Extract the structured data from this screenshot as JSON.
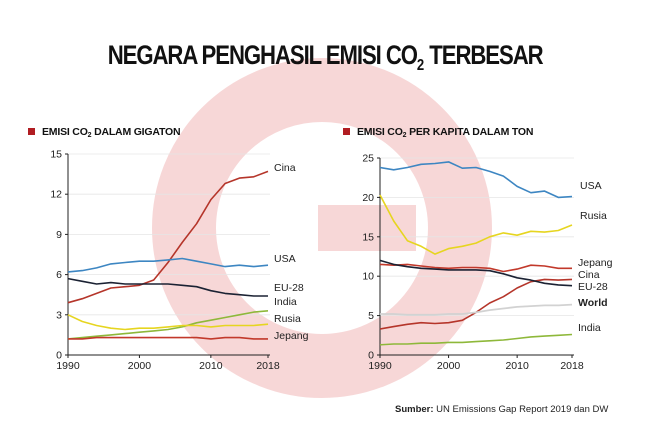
{
  "page": {
    "title_main": "NEGARA PENGHASIL EMISI CO",
    "title_sub": "2",
    "title_end": " TERBESAR",
    "source_label": "Sumber:",
    "source_text": " UN Emissions Gap Report 2019 dan DW"
  },
  "colors": {
    "accent": "#b11d22",
    "watermark": "#f4c9c9",
    "Cina": "#b5352a",
    "USA": "#3d86c2",
    "EU-28": "#1b2233",
    "India": "#8eb83a",
    "Rusia": "#e6d520",
    "Jepang": "#c2392b",
    "World": "#d2d2d2"
  },
  "chart_data": [
    {
      "type": "line",
      "title_main": "EMISI CO",
      "title_sub": "2",
      "title_end": " DALAM GIGATON",
      "xlim": [
        1990,
        2018
      ],
      "ylim": [
        0,
        15
      ],
      "x_ticks": [
        "1990",
        "2000",
        "2010",
        "2018"
      ],
      "x_tick_values": [
        1990,
        2000,
        2010,
        2018
      ],
      "y_ticks": [
        "0",
        "3",
        "6",
        "9",
        "12",
        "15"
      ],
      "y_tick_values": [
        0,
        3,
        6,
        9,
        12,
        15
      ],
      "x": [
        1990,
        1992,
        1994,
        1996,
        1998,
        2000,
        2002,
        2004,
        2006,
        2008,
        2010,
        2012,
        2014,
        2016,
        2018
      ],
      "series": [
        {
          "name": "Cina",
          "values": [
            3.9,
            4.2,
            4.6,
            5.0,
            5.1,
            5.2,
            5.6,
            6.9,
            8.4,
            9.8,
            11.6,
            12.8,
            13.2,
            13.3,
            13.7
          ]
        },
        {
          "name": "USA",
          "values": [
            6.2,
            6.3,
            6.5,
            6.8,
            6.9,
            7.0,
            7.0,
            7.1,
            7.2,
            7.0,
            6.8,
            6.6,
            6.7,
            6.6,
            6.7
          ]
        },
        {
          "name": "EU-28",
          "values": [
            5.7,
            5.5,
            5.3,
            5.4,
            5.3,
            5.3,
            5.3,
            5.3,
            5.2,
            5.1,
            4.8,
            4.6,
            4.5,
            4.4,
            4.4
          ]
        },
        {
          "name": "India",
          "values": [
            1.2,
            1.3,
            1.4,
            1.5,
            1.6,
            1.7,
            1.8,
            1.9,
            2.1,
            2.4,
            2.6,
            2.8,
            3.0,
            3.2,
            3.3
          ]
        },
        {
          "name": "Rusia",
          "values": [
            3.0,
            2.5,
            2.2,
            2.0,
            1.9,
            2.0,
            2.0,
            2.1,
            2.2,
            2.2,
            2.1,
            2.2,
            2.2,
            2.2,
            2.3
          ]
        },
        {
          "name": "Jepang",
          "values": [
            1.2,
            1.2,
            1.3,
            1.3,
            1.3,
            1.3,
            1.3,
            1.3,
            1.3,
            1.3,
            1.2,
            1.3,
            1.3,
            1.2,
            1.2
          ]
        }
      ]
    },
    {
      "type": "line",
      "title_main": "EMISI CO",
      "title_sub": "2",
      "title_end": " PER KAPITA DALAM TON",
      "xlim": [
        1990,
        2018
      ],
      "ylim": [
        0,
        25
      ],
      "x_ticks": [
        "1990",
        "2000",
        "2010",
        "2018"
      ],
      "x_tick_values": [
        1990,
        2000,
        2010,
        2018
      ],
      "y_ticks": [
        "0",
        "5",
        "10",
        "15",
        "20",
        "25"
      ],
      "y_tick_values": [
        0,
        5,
        10,
        15,
        20,
        25
      ],
      "x": [
        1990,
        1992,
        1994,
        1996,
        1998,
        2000,
        2002,
        2004,
        2006,
        2008,
        2010,
        2012,
        2014,
        2016,
        2018
      ],
      "series": [
        {
          "name": "USA",
          "values": [
            23.8,
            23.5,
            23.8,
            24.2,
            24.3,
            24.5,
            23.7,
            23.8,
            23.3,
            22.7,
            21.4,
            20.6,
            20.8,
            20.0,
            20.1
          ]
        },
        {
          "name": "Rusia",
          "values": [
            20.3,
            17.0,
            14.5,
            13.8,
            12.8,
            13.5,
            13.8,
            14.2,
            15.0,
            15.5,
            15.2,
            15.7,
            15.6,
            15.8,
            16.5
          ]
        },
        {
          "name": "Jepang",
          "values": [
            11.5,
            11.4,
            11.5,
            11.3,
            11.1,
            11.0,
            11.1,
            11.1,
            11.0,
            10.6,
            10.9,
            11.4,
            11.3,
            11.0,
            11.0
          ]
        },
        {
          "name": "Cina",
          "values": [
            3.3,
            3.6,
            3.9,
            4.1,
            4.0,
            4.1,
            4.4,
            5.4,
            6.6,
            7.4,
            8.5,
            9.3,
            9.6,
            9.5,
            9.6
          ]
        },
        {
          "name": "EU-28",
          "values": [
            12.0,
            11.5,
            11.2,
            11.0,
            10.9,
            10.8,
            10.8,
            10.8,
            10.7,
            10.3,
            9.8,
            9.5,
            9.1,
            8.9,
            8.8
          ]
        },
        {
          "name": "World",
          "values": [
            5.2,
            5.2,
            5.1,
            5.1,
            5.1,
            5.2,
            5.2,
            5.4,
            5.7,
            5.9,
            6.1,
            6.2,
            6.3,
            6.3,
            6.4
          ]
        },
        {
          "name": "India",
          "values": [
            1.3,
            1.4,
            1.4,
            1.5,
            1.5,
            1.6,
            1.6,
            1.7,
            1.8,
            1.9,
            2.1,
            2.3,
            2.4,
            2.5,
            2.6
          ]
        }
      ]
    }
  ]
}
